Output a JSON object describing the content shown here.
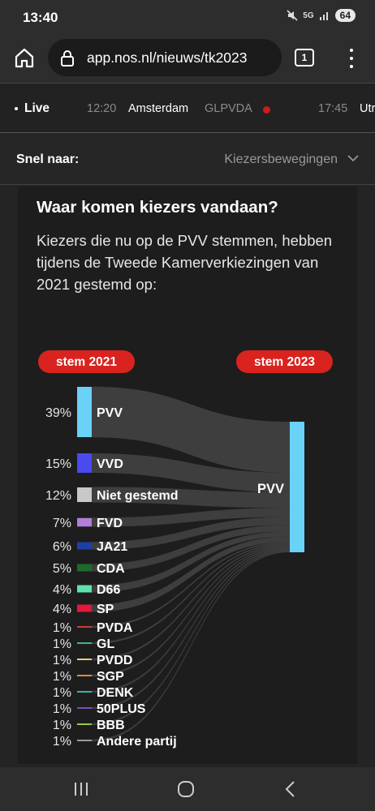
{
  "status": {
    "time": "13:40",
    "network": "5G",
    "battery": "64"
  },
  "browser": {
    "url": "app.nos.nl/nieuws/tk2023",
    "tab_count": "1"
  },
  "ticker": {
    "live_label": "Live",
    "items": [
      {
        "time": "12:20",
        "city": "Amsterdam",
        "party": "GLPVDA"
      },
      {
        "time": "17:45",
        "city": "Utr"
      }
    ]
  },
  "snel": {
    "label": "Snel naar:",
    "value": "Kiezersbewegingen"
  },
  "card": {
    "title": "Waar komen kiezers vandaan?",
    "description": "Kiezers die nu op de PVV stemmen, hebben tijdens de Tweede Kamerverkiezingen van 2021 gestemd op:"
  },
  "chart_data": {
    "type": "sankey",
    "left_label": "stem 2021",
    "right_label": "stem 2023",
    "target": "PVV",
    "target_color": "#6ad1f7",
    "sources": [
      {
        "name": "PVV",
        "pct": 39,
        "label": "39%",
        "color": "#6ad1f7"
      },
      {
        "name": "VVD",
        "pct": 15,
        "label": "15%",
        "color": "#4a4af0"
      },
      {
        "name": "Niet gestemd",
        "pct": 12,
        "label": "12%",
        "color": "#c8c8c8"
      },
      {
        "name": "FVD",
        "pct": 7,
        "label": "7%",
        "color": "#b17ed9"
      },
      {
        "name": "JA21",
        "pct": 6,
        "label": "6%",
        "color": "#1f3fa8"
      },
      {
        "name": "CDA",
        "pct": 5,
        "label": "5%",
        "color": "#1d6b2a"
      },
      {
        "name": "D66",
        "pct": 4,
        "label": "4%",
        "color": "#5fe0b0"
      },
      {
        "name": "SP",
        "pct": 4,
        "label": "4%",
        "color": "#e3183c"
      },
      {
        "name": "PVDA",
        "pct": 1,
        "label": "1%",
        "color": "#d03b3b"
      },
      {
        "name": "GL",
        "pct": 1,
        "label": "1%",
        "color": "#3fb39a"
      },
      {
        "name": "PVDD",
        "pct": 1,
        "label": "1%",
        "color": "#e8d06a"
      },
      {
        "name": "SGP",
        "pct": 1,
        "label": "1%",
        "color": "#e8893a"
      },
      {
        "name": "DENK",
        "pct": 1,
        "label": "1%",
        "color": "#2fb3b3"
      },
      {
        "name": "50PLUS",
        "pct": 1,
        "label": "1%",
        "color": "#7d4bbf"
      },
      {
        "name": "BBB",
        "pct": 1,
        "label": "1%",
        "color": "#98c94a"
      },
      {
        "name": "Andere partij",
        "pct": 1,
        "label": "1%",
        "color": "#9a9a9a"
      }
    ]
  }
}
